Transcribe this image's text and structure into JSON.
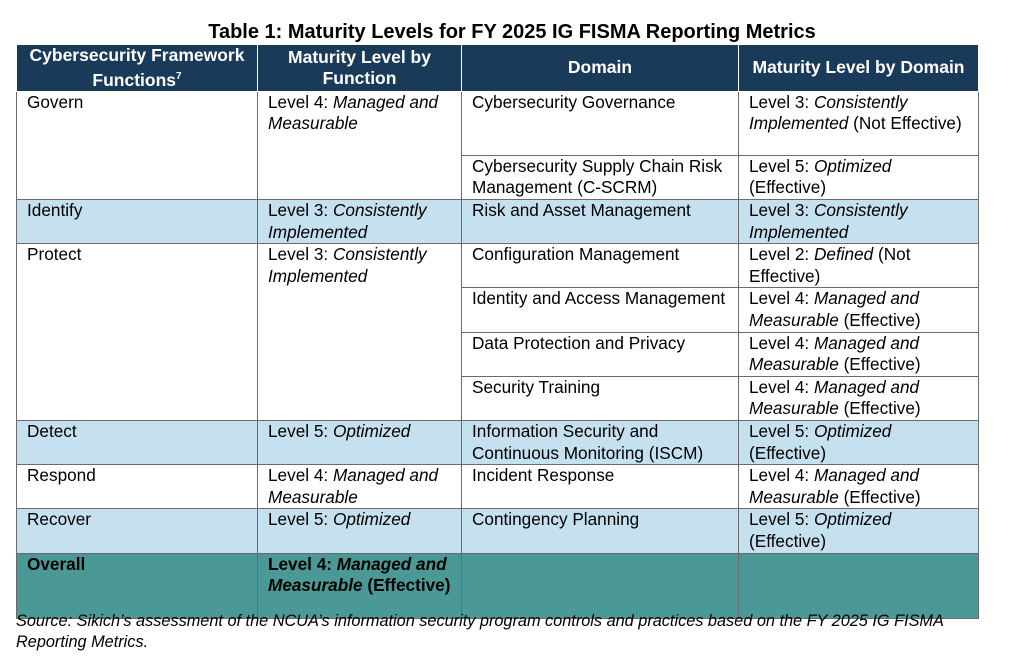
{
  "title": "Table 1: Maturity Levels for FY 2025 IG FISMA Reporting Metrics",
  "headers": {
    "function": "Cybersecurity Framework Functions",
    "footnote_mark": "7",
    "function_level": "Maturity Level by Function",
    "domain": "Domain",
    "domain_level": "Maturity Level by Domain"
  },
  "rows": {
    "govern": {
      "function": "Govern",
      "fl_prefix": "Level 4: ",
      "fl_name": "Managed and Measurable",
      "fl_suffix": "",
      "d1": "Cybersecurity Governance",
      "d1_prefix": "Level 3: ",
      "d1_name": "Consistently Implemented",
      "d1_suffix": " (Not Effective)",
      "d2": "Cybersecurity Supply Chain Risk Management (C-SCRM)",
      "d2_prefix": "Level 5: ",
      "d2_name": "Optimized",
      "d2_suffix": " (Effective)"
    },
    "identify": {
      "function": "Identify",
      "fl_prefix": "Level 3: ",
      "fl_name": "Consistently Implemented",
      "fl_suffix": "",
      "d1": "Risk and Asset Management",
      "d1_prefix": "Level 3: ",
      "d1_name": "Consistently Implemented",
      "d1_suffix": ""
    },
    "protect": {
      "function": "Protect",
      "fl_prefix": "Level 3: ",
      "fl_name": "Consistently Implemented",
      "fl_suffix": "",
      "d1": "Configuration Management",
      "d1_prefix": "Level 2: ",
      "d1_name": "Defined",
      "d1_suffix": " (Not Effective)",
      "d2": "Identity and Access Management",
      "d2_prefix": "Level 4: ",
      "d2_name": "Managed and Measurable",
      "d2_suffix": " (Effective)",
      "d3": "Data Protection and Privacy",
      "d3_prefix": "Level 4: ",
      "d3_name": "Managed and Measurable",
      "d3_suffix": " (Effective)",
      "d4": "Security Training",
      "d4_prefix": "Level 4: ",
      "d4_name": "Managed and Measurable",
      "d4_suffix": " (Effective)"
    },
    "detect": {
      "function": "Detect",
      "fl_prefix": "Level 5: ",
      "fl_name": "Optimized",
      "fl_suffix": "",
      "d1": "Information Security and Continuous Monitoring (ISCM)",
      "d1_prefix": "Level 5: ",
      "d1_name": "Optimized",
      "d1_suffix": " (Effective)"
    },
    "respond": {
      "function": "Respond",
      "fl_prefix": "Level 4: ",
      "fl_name": "Managed and Measurable",
      "fl_suffix": "",
      "d1": "Incident Response",
      "d1_prefix": "Level 4: ",
      "d1_name": "Managed and Measurable",
      "d1_suffix": " (Effective)"
    },
    "recover": {
      "function": "Recover",
      "fl_prefix": "Level 5: ",
      "fl_name": "Optimized",
      "fl_suffix": "",
      "d1": "Contingency Planning",
      "d1_prefix": "Level 5: ",
      "d1_name": "Optimized",
      "d1_suffix": " (Effective)"
    },
    "overall": {
      "function": "Overall",
      "fl_prefix": "Level 4: ",
      "fl_name": "Managed and Measurable",
      "fl_suffix": " (Effective)"
    }
  },
  "source": "Source: Sikich’s assessment of the NCUA’s information security program controls and practices based on the FY 2025 IG FISMA Reporting Metrics.",
  "colors": {
    "header_bg": "#1a3a5a",
    "band_blue": "#c5e0ee",
    "overall_teal": "#4b9996"
  }
}
